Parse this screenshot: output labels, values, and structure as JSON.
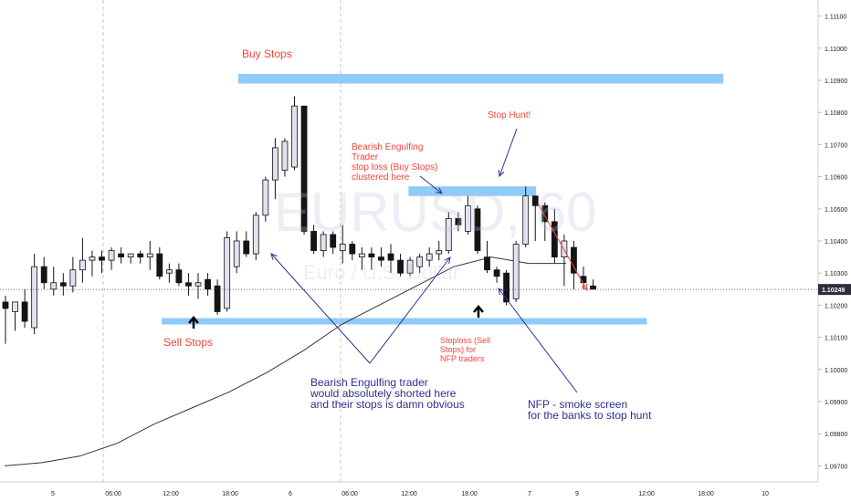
{
  "chart_data": {
    "type": "candlestick",
    "symbol_watermark": "EURUSD, 60",
    "watermark_sub": "Euro / U.S. Dollar",
    "ylim": [
      1.0965,
      1.1115
    ],
    "y_ticks": [
      "1.11100",
      "1.11000",
      "1.10900",
      "1.10800",
      "1.10700",
      "1.10600",
      "1.10500",
      "1.10400",
      "1.10300",
      "1.10200",
      "1.10100",
      "1.10000",
      "1.09900",
      "1.09800",
      "1.09700"
    ],
    "last_price": "1.10249",
    "x_ticks": [
      "5",
      "06:00",
      "12:00",
      "18:00",
      "6",
      "06:00",
      "12:00",
      "18:00",
      "7",
      "9",
      "12:00",
      "18:00",
      "10"
    ],
    "candles": [
      {
        "o": 1.1021,
        "h": 1.1023,
        "l": 1.1008,
        "c": 1.1019
      },
      {
        "o": 1.1018,
        "h": 1.1021,
        "l": 1.1012,
        "c": 1.1021
      },
      {
        "o": 1.1021,
        "h": 1.1025,
        "l": 1.1013,
        "c": 1.1015
      },
      {
        "o": 1.1013,
        "h": 1.1036,
        "l": 1.1011,
        "c": 1.1032
      },
      {
        "o": 1.1032,
        "h": 1.1035,
        "l": 1.1025,
        "c": 1.1027
      },
      {
        "o": 1.1025,
        "h": 1.1032,
        "l": 1.1023,
        "c": 1.1027
      },
      {
        "o": 1.1027,
        "h": 1.103,
        "l": 1.1023,
        "c": 1.1026
      },
      {
        "o": 1.1026,
        "h": 1.1035,
        "l": 1.1024,
        "c": 1.1031
      },
      {
        "o": 1.1031,
        "h": 1.1041,
        "l": 1.1027,
        "c": 1.1034
      },
      {
        "o": 1.1034,
        "h": 1.1037,
        "l": 1.1029,
        "c": 1.1035
      },
      {
        "o": 1.1035,
        "h": 1.1037,
        "l": 1.103,
        "c": 1.1034
      },
      {
        "o": 1.1034,
        "h": 1.1038,
        "l": 1.1031,
        "c": 1.1037
      },
      {
        "o": 1.1036,
        "h": 1.1038,
        "l": 1.1033,
        "c": 1.1035
      },
      {
        "o": 1.1035,
        "h": 1.1036,
        "l": 1.1033,
        "c": 1.1036
      },
      {
        "o": 1.1036,
        "h": 1.1037,
        "l": 1.1033,
        "c": 1.1035
      },
      {
        "o": 1.1035,
        "h": 1.104,
        "l": 1.1031,
        "c": 1.1036
      },
      {
        "o": 1.1036,
        "h": 1.1038,
        "l": 1.1028,
        "c": 1.1029
      },
      {
        "o": 1.103,
        "h": 1.1033,
        "l": 1.1027,
        "c": 1.1031
      },
      {
        "o": 1.1031,
        "h": 1.1033,
        "l": 1.1026,
        "c": 1.1027
      },
      {
        "o": 1.1027,
        "h": 1.103,
        "l": 1.1023,
        "c": 1.1026
      },
      {
        "o": 1.1026,
        "h": 1.103,
        "l": 1.1022,
        "c": 1.1027
      },
      {
        "o": 1.1028,
        "h": 1.103,
        "l": 1.1023,
        "c": 1.1025
      },
      {
        "o": 1.1026,
        "h": 1.1028,
        "l": 1.1017,
        "c": 1.1018
      },
      {
        "o": 1.1019,
        "h": 1.1043,
        "l": 1.1018,
        "c": 1.1041
      },
      {
        "o": 1.1032,
        "h": 1.1043,
        "l": 1.103,
        "c": 1.104
      },
      {
        "o": 1.104,
        "h": 1.1043,
        "l": 1.1035,
        "c": 1.1036
      },
      {
        "o": 1.1036,
        "h": 1.1049,
        "l": 1.1034,
        "c": 1.1048
      },
      {
        "o": 1.1048,
        "h": 1.106,
        "l": 1.1046,
        "c": 1.1059
      },
      {
        "o": 1.1059,
        "h": 1.1072,
        "l": 1.1053,
        "c": 1.1069
      },
      {
        "o": 1.1062,
        "h": 1.1072,
        "l": 1.106,
        "c": 1.1071
      },
      {
        "o": 1.1063,
        "h": 1.1085,
        "l": 1.1062,
        "c": 1.1082
      },
      {
        "o": 1.1082,
        "h": 1.1082,
        "l": 1.1042,
        "c": 1.1043
      },
      {
        "o": 1.1043,
        "h": 1.1045,
        "l": 1.1036,
        "c": 1.1037
      },
      {
        "o": 1.1037,
        "h": 1.1043,
        "l": 1.1035,
        "c": 1.1042
      },
      {
        "o": 1.1042,
        "h": 1.1043,
        "l": 1.1036,
        "c": 1.1038
      },
      {
        "o": 1.1037,
        "h": 1.1045,
        "l": 1.1033,
        "c": 1.1039
      },
      {
        "o": 1.1039,
        "h": 1.104,
        "l": 1.1034,
        "c": 1.1036
      },
      {
        "o": 1.1035,
        "h": 1.1038,
        "l": 1.1031,
        "c": 1.1036
      },
      {
        "o": 1.1036,
        "h": 1.1038,
        "l": 1.1031,
        "c": 1.1035
      },
      {
        "o": 1.1035,
        "h": 1.1038,
        "l": 1.1032,
        "c": 1.1034
      },
      {
        "o": 1.1036,
        "h": 1.1039,
        "l": 1.103,
        "c": 1.1034
      },
      {
        "o": 1.1034,
        "h": 1.1036,
        "l": 1.1029,
        "c": 1.103
      },
      {
        "o": 1.103,
        "h": 1.1035,
        "l": 1.1029,
        "c": 1.1034
      },
      {
        "o": 1.1032,
        "h": 1.1036,
        "l": 1.103,
        "c": 1.1035
      },
      {
        "o": 1.1034,
        "h": 1.1038,
        "l": 1.1032,
        "c": 1.1036
      },
      {
        "o": 1.1036,
        "h": 1.104,
        "l": 1.1034,
        "c": 1.1037
      },
      {
        "o": 1.1037,
        "h": 1.1049,
        "l": 1.1036,
        "c": 1.1047
      },
      {
        "o": 1.1047,
        "h": 1.1049,
        "l": 1.1043,
        "c": 1.1045
      },
      {
        "o": 1.1043,
        "h": 1.1054,
        "l": 1.1042,
        "c": 1.1051
      },
      {
        "o": 1.105,
        "h": 1.1051,
        "l": 1.1036,
        "c": 1.1037
      },
      {
        "o": 1.1035,
        "h": 1.104,
        "l": 1.103,
        "c": 1.1031
      },
      {
        "o": 1.1031,
        "h": 1.1032,
        "l": 1.1027,
        "c": 1.1029
      },
      {
        "o": 1.103,
        "h": 1.1031,
        "l": 1.102,
        "c": 1.1021
      },
      {
        "o": 1.1022,
        "h": 1.104,
        "l": 1.1021,
        "c": 1.1039
      },
      {
        "o": 1.1039,
        "h": 1.1057,
        "l": 1.1038,
        "c": 1.1054
      },
      {
        "o": 1.1054,
        "h": 1.1054,
        "l": 1.104,
        "c": 1.1051
      },
      {
        "o": 1.1051,
        "h": 1.1052,
        "l": 1.104,
        "c": 1.1046
      },
      {
        "o": 1.1046,
        "h": 1.105,
        "l": 1.1033,
        "c": 1.1035
      },
      {
        "o": 1.1035,
        "h": 1.1042,
        "l": 1.1026,
        "c": 1.104
      },
      {
        "o": 1.1038,
        "h": 1.104,
        "l": 1.1025,
        "c": 1.103
      },
      {
        "o": 1.1029,
        "h": 1.1032,
        "l": 1.1025,
        "c": 1.1027
      },
      {
        "o": 1.1026,
        "h": 1.1028,
        "l": 1.1025,
        "c": 1.1025
      }
    ],
    "moving_average": [
      1.097,
      1.0971,
      1.0973,
      1.0977,
      1.0983,
      1.0988,
      1.0993,
      1.0999,
      1.1006,
      1.1014,
      1.102,
      1.1026,
      1.1032,
      1.1035,
      1.1033,
      1.1033
    ],
    "zones": [
      {
        "name": "buy-stops-zone",
        "label": "Buy Stops",
        "from": 1.1089,
        "to": 1.1092,
        "x0": 0.28,
        "x1": 0.85
      },
      {
        "name": "clustered-stops-zone",
        "from": 1.1054,
        "to": 1.1057,
        "x0": 0.48,
        "x1": 0.63
      },
      {
        "name": "sell-stops-zone",
        "label": "Sell Stops",
        "from": 1.1014,
        "to": 1.1016,
        "x0": 0.19,
        "x1": 0.76
      }
    ],
    "annotations": {
      "buy_stops": "Buy Stops",
      "sell_stops": "Sell Stops",
      "bearish_engulfing": "Bearish Engulfing\nTrader\nstop loss (Buy Stops)\nclustered here",
      "stop_hunt": "Stop Hunt!",
      "stoploss_nfp": "Stoploss (Sell\nStops) for\nNFP traders",
      "bearish_shorted": "Bearish Engulfing trader\nwould absolutely shorted here\nand their stops is damn obvious",
      "nfp_smoke": "NFP - smoke screen\nfor the banks to stop hunt"
    },
    "colors": {
      "zone": "#90caf9",
      "label_red": "#f0453a",
      "label_blue": "#2e2f8f",
      "bull_fill": "#e3e1f1",
      "bear_fill": "#141414",
      "axis_text": "#222222"
    }
  }
}
